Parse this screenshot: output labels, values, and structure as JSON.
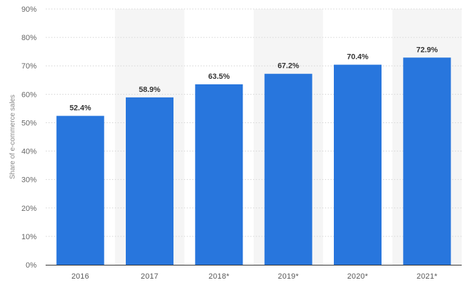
{
  "chart_data": {
    "type": "bar",
    "title": "",
    "xlabel": "",
    "ylabel": "Share of e-commerce sales",
    "categories": [
      "2016",
      "2017",
      "2018*",
      "2019*",
      "2020*",
      "2021*"
    ],
    "values": [
      52.4,
      58.9,
      63.5,
      67.2,
      70.4,
      72.9
    ],
    "value_labels": [
      "52.4%",
      "58.9%",
      "63.5%",
      "67.2%",
      "70.4%",
      "72.9%"
    ],
    "ylim": [
      0,
      90
    ],
    "yticks": [
      0,
      10,
      20,
      30,
      40,
      50,
      60,
      70,
      80,
      90
    ],
    "ytick_labels": [
      "0%",
      "10%",
      "20%",
      "30%",
      "40%",
      "50%",
      "60%",
      "70%",
      "80%",
      "90%"
    ],
    "grid": true,
    "bar_color": "#2876dd",
    "alt_band_color": "#f5f5f5",
    "grid_color": "#dddddd"
  }
}
